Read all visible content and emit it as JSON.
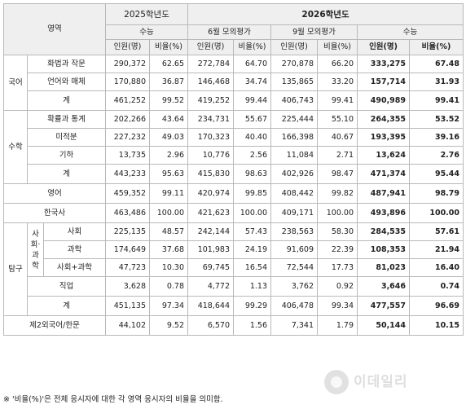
{
  "header": {
    "area": "영역",
    "y2025": "2025학년도",
    "y2026": "2026학년도",
    "exam_suneung": "수능",
    "exam_june": "6월 모의평가",
    "exam_sept": "9월 모의평가",
    "count": "인원(명)",
    "ratio": "비율(%)"
  },
  "sections": {
    "korean": "국어",
    "math": "수학",
    "english": "영어",
    "korhist": "한국사",
    "inquiry": "탐구",
    "social_science": "사회·과학",
    "foreign": "제2외국어/한문"
  },
  "rows": {
    "kor_hwa": {
      "label": "화법과 작문",
      "v": [
        "290,372",
        "62.65",
        "272,784",
        "64.70",
        "270,878",
        "66.20",
        "333,275",
        "67.48"
      ]
    },
    "kor_eon": {
      "label": "언어와 매체",
      "v": [
        "170,880",
        "36.87",
        "146,468",
        "34.74",
        "135,865",
        "33.20",
        "157,714",
        "31.93"
      ]
    },
    "kor_tot": {
      "label": "계",
      "v": [
        "461,252",
        "99.52",
        "419,252",
        "99.44",
        "406,743",
        "99.41",
        "490,989",
        "99.41"
      ]
    },
    "math_hs": {
      "label": "확률과 통계",
      "v": [
        "202,266",
        "43.64",
        "234,731",
        "55.67",
        "225,444",
        "55.10",
        "264,355",
        "53.52"
      ]
    },
    "math_mi": {
      "label": "미적분",
      "v": [
        "227,232",
        "49.03",
        "170,323",
        "40.40",
        "166,398",
        "40.67",
        "193,395",
        "39.16"
      ]
    },
    "math_gi": {
      "label": "기하",
      "v": [
        "13,735",
        "2.96",
        "10,776",
        "2.56",
        "11,084",
        "2.71",
        "13,624",
        "2.76"
      ]
    },
    "math_tot": {
      "label": "계",
      "v": [
        "443,233",
        "95.63",
        "415,830",
        "98.63",
        "402,926",
        "98.47",
        "471,374",
        "95.44"
      ]
    },
    "eng": {
      "label": "영어",
      "v": [
        "459,352",
        "99.11",
        "420,974",
        "99.85",
        "408,442",
        "99.82",
        "487,941",
        "98.79"
      ]
    },
    "hist": {
      "label": "한국사",
      "v": [
        "463,486",
        "100.00",
        "421,623",
        "100.00",
        "409,171",
        "100.00",
        "493,896",
        "100.00"
      ]
    },
    "inq_soc": {
      "label": "사회",
      "v": [
        "225,135",
        "48.57",
        "242,144",
        "57.43",
        "238,563",
        "58.30",
        "284,535",
        "57.61"
      ]
    },
    "inq_sci": {
      "label": "과학",
      "v": [
        "174,649",
        "37.68",
        "101,983",
        "24.19",
        "91,609",
        "22.39",
        "108,353",
        "21.94"
      ]
    },
    "inq_mix": {
      "label": "사회+과학",
      "v": [
        "47,723",
        "10.30",
        "69,745",
        "16.54",
        "72,544",
        "17.73",
        "81,023",
        "16.40"
      ]
    },
    "inq_job": {
      "label": "직업",
      "v": [
        "3,628",
        "0.78",
        "4,772",
        "1.13",
        "3,762",
        "0.92",
        "3,646",
        "0.74"
      ]
    },
    "inq_tot": {
      "label": "계",
      "v": [
        "451,135",
        "97.34",
        "418,644",
        "99.29",
        "406,478",
        "99.34",
        "477,557",
        "96.69"
      ]
    },
    "foreign": {
      "label": "제2외국어/한문",
      "v": [
        "44,102",
        "9.52",
        "6,570",
        "1.56",
        "7,341",
        "1.79",
        "50,144",
        "10.15"
      ]
    }
  },
  "footnote": "※ '비율(%)'은 전체 응시자에 대한 각 영역 응시자의 비율을 의미함.",
  "watermark": {
    "text": "이데일리",
    "sub": "(이데일리 로고 워터마크)"
  }
}
